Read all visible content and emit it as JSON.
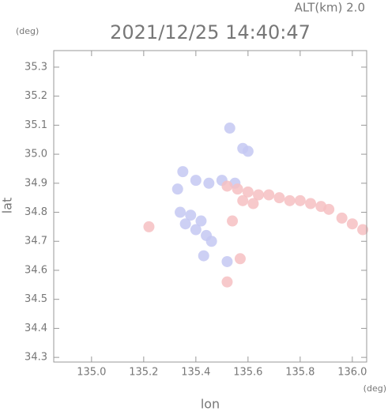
{
  "chart_data": {
    "type": "scatter",
    "title": "2021/12/25 14:40:47",
    "altitude_label": "ALT(km) 2.0",
    "y_unit": "(deg)",
    "x_unit": "(deg)",
    "xlabel": "lon",
    "ylabel": "lat",
    "xlim": [
      134.855,
      136.055
    ],
    "ylim": [
      34.284,
      35.357
    ],
    "xticks": [
      {
        "value": 135,
        "label": "135.0"
      },
      135.2,
      135.4,
      135.6,
      135.8,
      {
        "value": 136,
        "label": "136.0"
      }
    ],
    "yticks": [
      34.3,
      34.4,
      34.5,
      34.6,
      34.7,
      34.8,
      34.9,
      {
        "value": 35,
        "label": "35.0"
      },
      35.1,
      35.2,
      35.3
    ],
    "series": [
      {
        "color": "#c4c8f2",
        "x": [
          135.34,
          135.38,
          135.42,
          135.36,
          135.4,
          135.44,
          135.46,
          135.35,
          135.4,
          135.45,
          135.5,
          135.55,
          135.33,
          135.58,
          135.53,
          135.43,
          135.52,
          135.6
        ],
        "values": [
          34.8,
          34.79,
          34.77,
          34.76,
          34.74,
          34.72,
          34.7,
          34.94,
          34.91,
          34.9,
          34.91,
          34.9,
          34.88,
          35.02,
          35.09,
          34.65,
          34.63,
          35.01
        ]
      },
      {
        "color": "#f6c0c2",
        "x": [
          135.52,
          135.56,
          135.6,
          135.64,
          135.68,
          135.72,
          135.76,
          135.8,
          135.84,
          135.88,
          135.91,
          135.58,
          135.62,
          135.96,
          136.0,
          136.04,
          135.57,
          135.52,
          135.22,
          135.54
        ],
        "values": [
          34.89,
          34.88,
          34.87,
          34.86,
          34.86,
          34.85,
          34.84,
          34.84,
          34.83,
          34.82,
          34.81,
          34.84,
          34.83,
          34.78,
          34.76,
          34.74,
          34.64,
          34.56,
          34.75,
          34.77
        ]
      }
    ]
  }
}
